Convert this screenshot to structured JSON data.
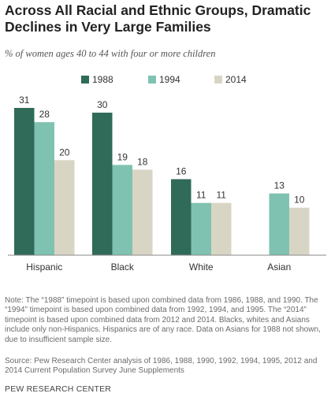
{
  "title": "Across All Racial and Ethnic Groups, Dramatic Declines in Very Large Families",
  "subtitle": "% of women ages 40 to 44 with four or more children",
  "note": "Note: The “1988” timepoint is based upon combined data from 1986, 1988, and 1990. The “1994” timepoint is based upon combined data from 1992, 1994, and 1995. The “2014” timepoint is based upon combined data from 2012 and 2014. Blacks, whites and Asians include only non-Hispanics. Hispanics are of any race. Data on Asians for 1988 not shown, due to insufficient sample size.",
  "source": "Source: Pew Research Center analysis of 1986, 1988, 1990, 1992, 1994, 1995, 2012 and 2014 Current Population Survey June Supplements",
  "brand": "PEW RESEARCH CENTER",
  "chart_data": {
    "type": "bar",
    "categories": [
      "Hispanic",
      "Black",
      "White",
      "Asian"
    ],
    "series": [
      {
        "name": "1988",
        "color": "#2f6b58",
        "values": [
          31,
          30,
          16,
          null
        ]
      },
      {
        "name": "1994",
        "color": "#7fc2b1",
        "values": [
          28,
          19,
          11,
          13
        ]
      },
      {
        "name": "2014",
        "color": "#d9d5c4",
        "values": [
          20,
          18,
          11,
          10
        ]
      }
    ],
    "ylim": [
      0,
      31
    ],
    "grid": false,
    "legend": "top-center",
    "value_labels": true
  }
}
